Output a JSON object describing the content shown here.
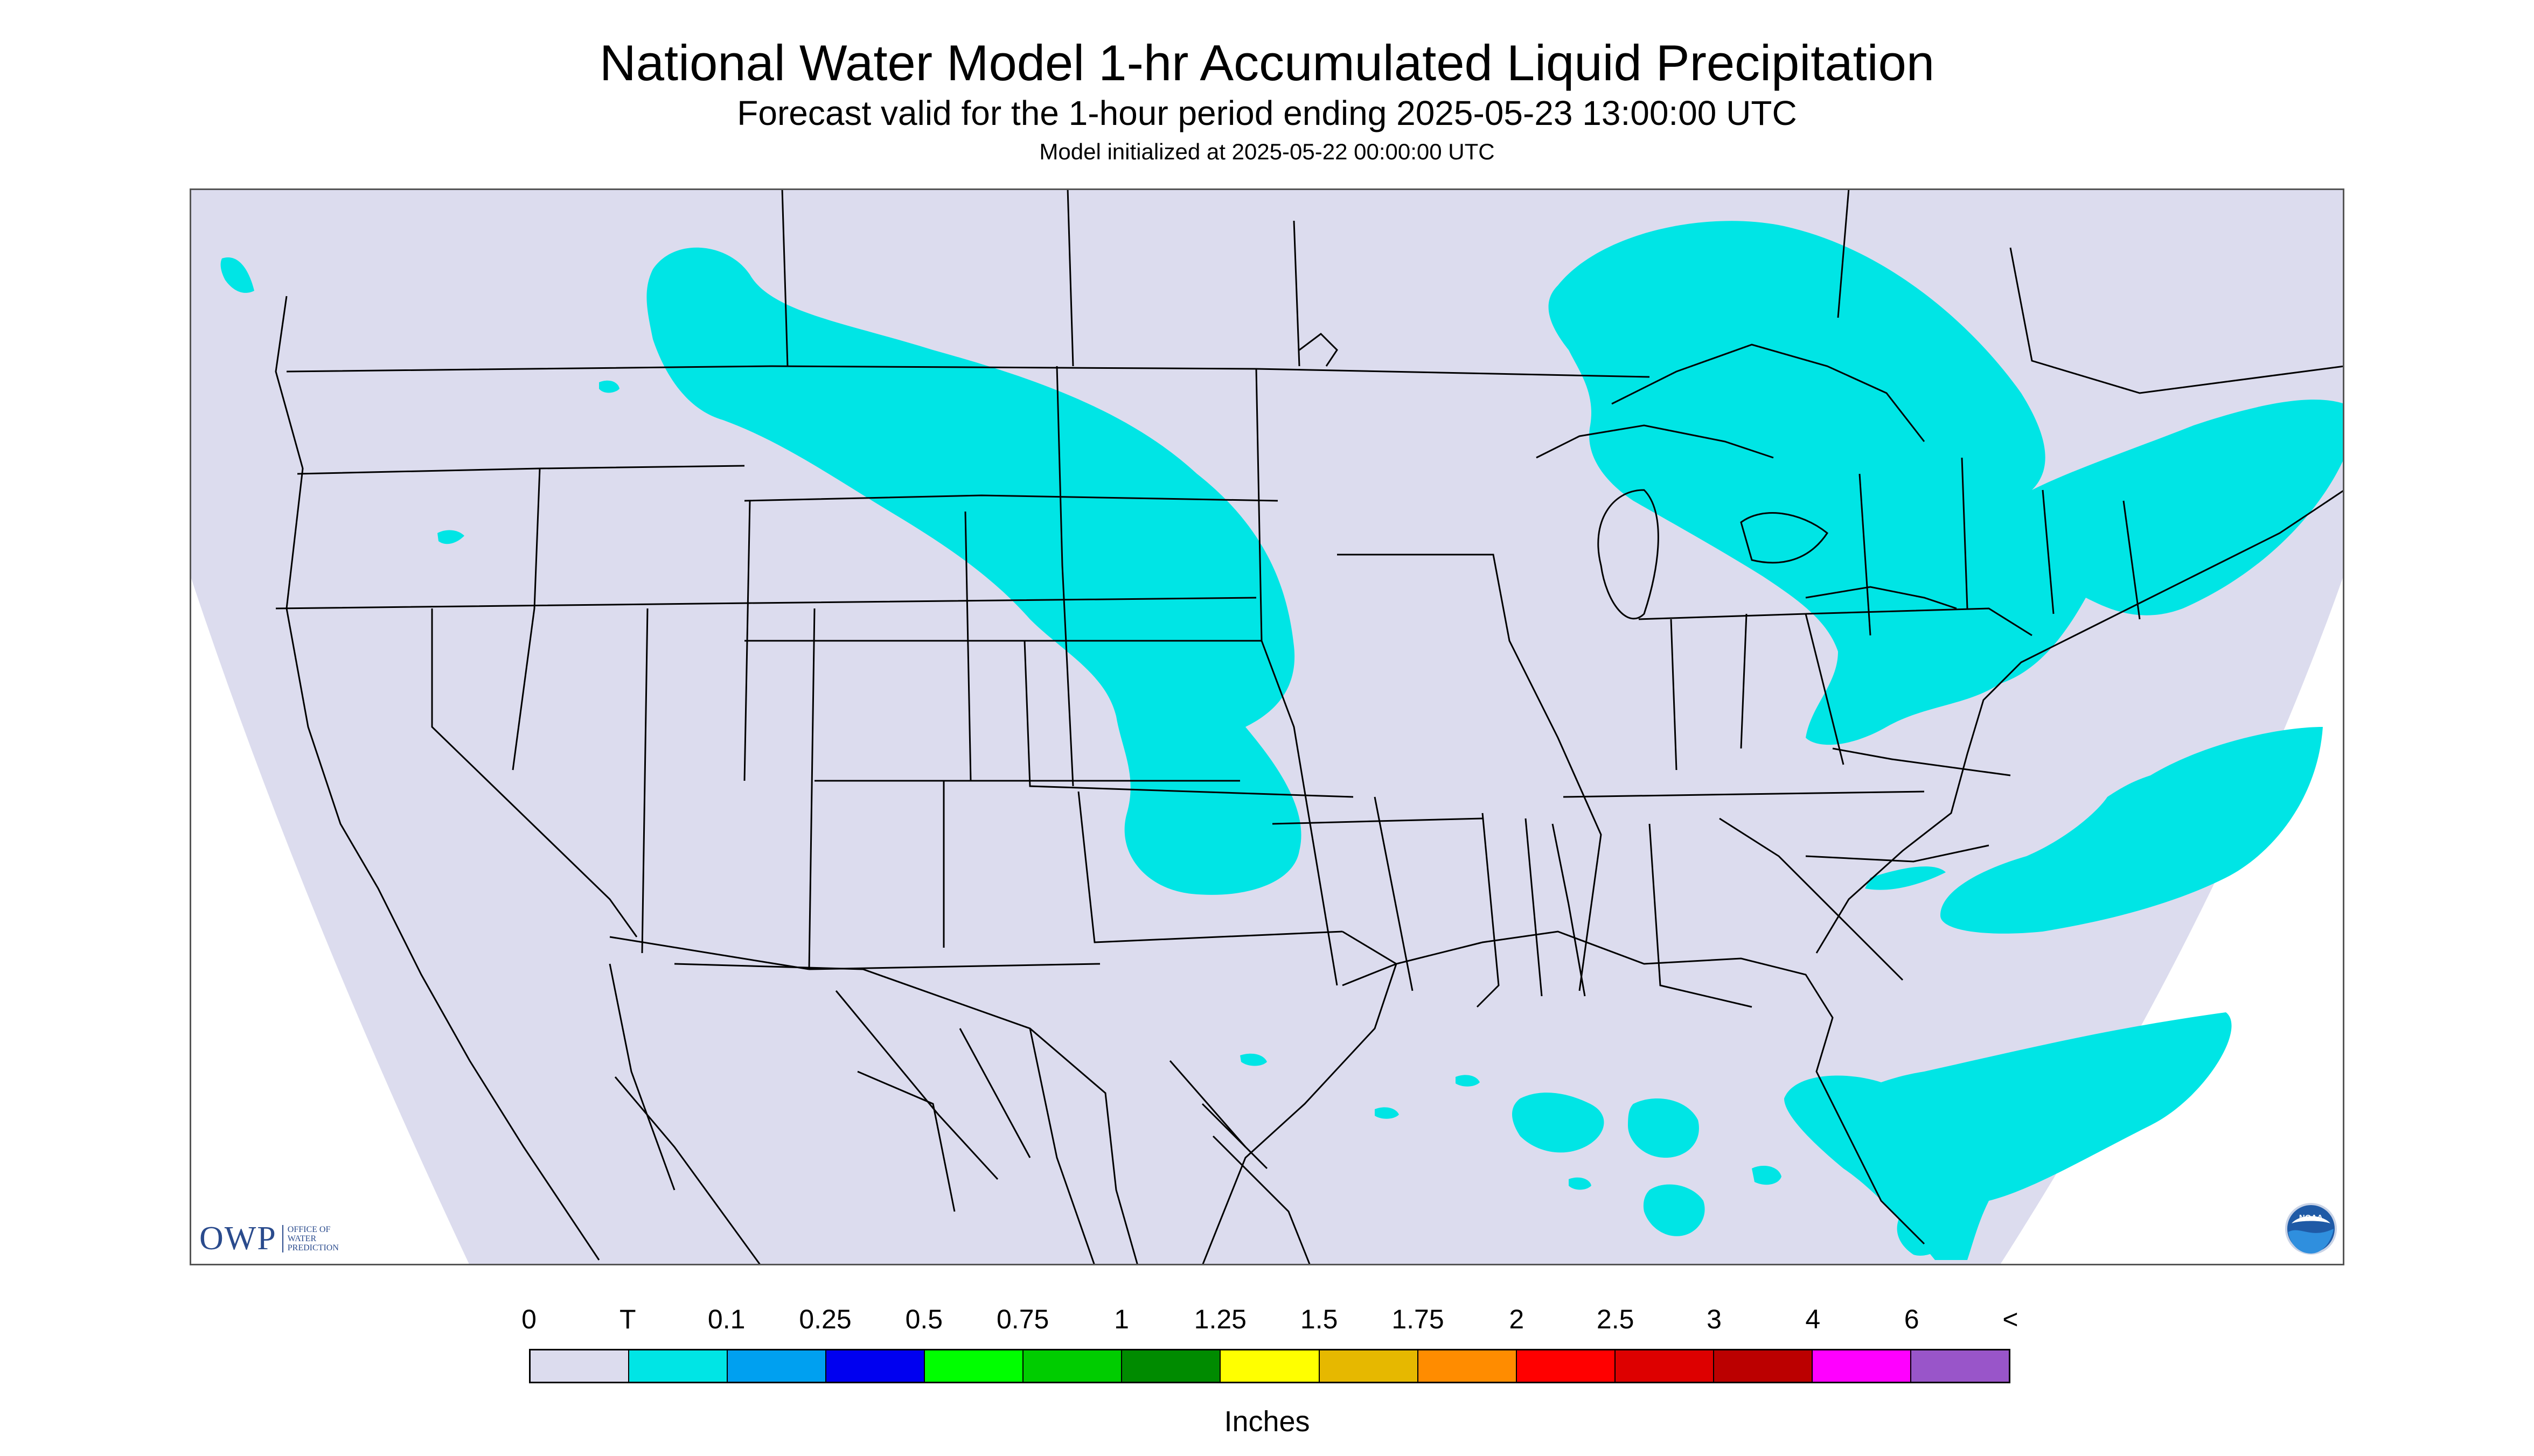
{
  "title": "National Water Model 1-hr Accumulated Liquid Precipitation",
  "subtitle": "Forecast valid for the 1-hour period ending 2025-05-23 13:00:00 UTC",
  "init_line": "Model initialized at 2025-05-22 00:00:00 UTC",
  "map": {
    "region": "Continental United States",
    "background_color": "#dcdcee",
    "outside_domain_color": "#ffffff",
    "border_color": "#000000",
    "precip_regions": [
      {
        "name": "northern-plains-band",
        "category": "T",
        "color": "#00e5e5"
      },
      {
        "name": "great-lakes-northeast",
        "category": "T",
        "color": "#00e5e5"
      },
      {
        "name": "atlantic-offshore",
        "category": "T",
        "color": "#00e5e5"
      },
      {
        "name": "florida-bahamas",
        "category": "T",
        "color": "#00e5e5"
      },
      {
        "name": "gulf-scattered",
        "category": "T",
        "color": "#00e5e5"
      }
    ]
  },
  "logos": {
    "owp": {
      "abbr": "OWP",
      "lines": [
        "OFFICE OF",
        "WATER",
        "PREDICTION"
      ]
    },
    "noaa": {
      "text": "NOAA"
    }
  },
  "legend": {
    "labels": [
      "0",
      "T",
      "0.1",
      "0.25",
      "0.5",
      "0.75",
      "1",
      "1.25",
      "1.5",
      "1.75",
      "2",
      "2.5",
      "3",
      "4",
      "6",
      "<"
    ],
    "colors": [
      "#dcdcee",
      "#00e5e5",
      "#00a0f0",
      "#0000f0",
      "#00ff00",
      "#00cc00",
      "#008b00",
      "#ffff00",
      "#e6b800",
      "#ff8c00",
      "#ff0000",
      "#dd0000",
      "#bb0000",
      "#ff00ff",
      "#9955c9"
    ],
    "units": "Inches"
  }
}
